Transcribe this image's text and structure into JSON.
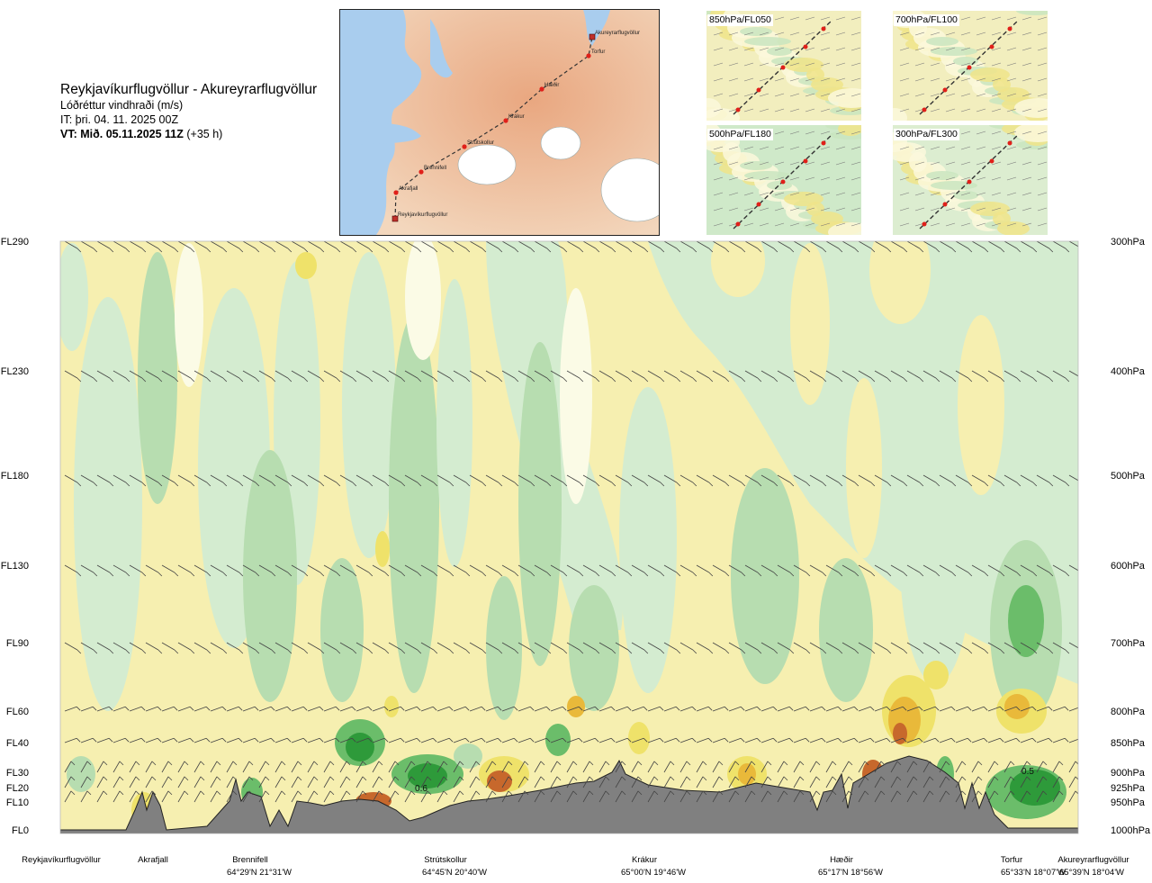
{
  "header": {
    "route": "Reykjavíkurflugvöllur - Akureyrarflugvöllur",
    "variable": "Lóðréttur vindhraði (m/s)",
    "issue_time": "IT: þri. 04. 11. 2025 00Z",
    "valid_label": "VT: Mið. 05.11.2025 11Z",
    "valid_offset": "(+35 h)"
  },
  "map": {
    "points": [
      {
        "name": "Akureyrarflugvöllur"
      },
      {
        "name": "Torfur"
      },
      {
        "name": "Hæðir"
      },
      {
        "name": "Krákur"
      },
      {
        "name": "Strútskollur"
      },
      {
        "name": "Brennifell"
      },
      {
        "name": "Akrafjall"
      },
      {
        "name": "Reykjavíkurflugvöllur"
      }
    ]
  },
  "thumbnails": [
    {
      "label": "850hPa/FL050"
    },
    {
      "label": "700hPa/FL100"
    },
    {
      "label": "500hPa/FL180"
    },
    {
      "label": "300hPa/FL300"
    }
  ],
  "chart_data": {
    "type": "heatmap",
    "title": "Reykjavíkurflugvöllur - Akureyrarflugvöllur",
    "variable": "Lóðréttur vindhraði (m/s)",
    "y_levels": [
      {
        "fl": "FL290",
        "hpa": "300hPa"
      },
      {
        "fl": "FL230",
        "hpa": "400hPa"
      },
      {
        "fl": "FL180",
        "hpa": "500hPa"
      },
      {
        "fl": "FL130",
        "hpa": "600hPa"
      },
      {
        "fl": "FL90",
        "hpa": "700hPa"
      },
      {
        "fl": "FL60",
        "hpa": "800hPa"
      },
      {
        "fl": "FL40",
        "hpa": "850hPa"
      },
      {
        "fl": "FL30",
        "hpa": "900hPa"
      },
      {
        "fl": "FL20",
        "hpa": "925hPa"
      },
      {
        "fl": "FL10",
        "hpa": "950hPa"
      },
      {
        "fl": "FL0",
        "hpa": "1000hPa"
      }
    ],
    "locations": [
      {
        "name": "Reykjavíkurflugvöllur",
        "coord": ""
      },
      {
        "name": "Akrafjall",
        "coord": ""
      },
      {
        "name": "Brennifell",
        "coord": "64°29'N 21°31'W"
      },
      {
        "name": "Strútskollur",
        "coord": "64°45'N 20°40'W"
      },
      {
        "name": "Krákur",
        "coord": "65°00'N 19°46'W"
      },
      {
        "name": "Hæðir",
        "coord": "65°17'N 18°56'W"
      },
      {
        "name": "Torfur",
        "coord": "65°33'N 18°07'W"
      },
      {
        "name": "Akureyrarflugvöllur",
        "coord": "65°39'N 18°04'W"
      }
    ],
    "contour_labels": [
      "0.6",
      "0.5"
    ],
    "colors": {
      "strong_up": "#2e9a3a",
      "up": "#6bbd6a",
      "weak_up": "#b7ddb0",
      "very_weak_up": "#d4ecd0",
      "neutral": "#fbfbe6",
      "weak_down": "#f6efb0",
      "down": "#efe26a",
      "strong_down": "#e9b93a",
      "very_strong_down": "#c7682c",
      "terrain": "#808080"
    }
  }
}
